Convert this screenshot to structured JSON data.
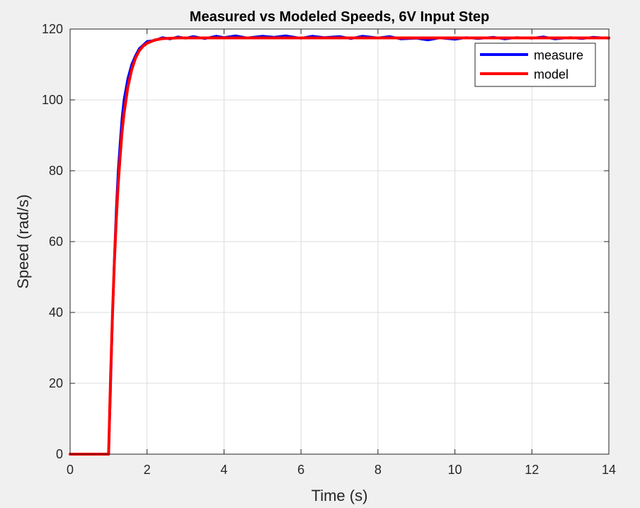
{
  "chart_data": {
    "type": "line",
    "title": "Measured vs Modeled Speeds, 6V Input Step",
    "xlabel": "Time (s)",
    "ylabel": "Speed (rad/s)",
    "xlim": [
      0,
      14
    ],
    "ylim": [
      0,
      120
    ],
    "xticks": [
      0,
      2,
      4,
      6,
      8,
      10,
      12,
      14
    ],
    "yticks": [
      0,
      20,
      40,
      60,
      80,
      100,
      120
    ],
    "grid": true,
    "legend_position": "top-right",
    "series": [
      {
        "name": "measure",
        "color": "#0000ff",
        "x": [
          0,
          0.5,
          0.99,
          1.0,
          1.05,
          1.1,
          1.15,
          1.2,
          1.25,
          1.3,
          1.35,
          1.4,
          1.5,
          1.6,
          1.7,
          1.8,
          1.9,
          2.0,
          2.2,
          2.4,
          2.6,
          2.8,
          3.0,
          3.2,
          3.5,
          3.8,
          4.0,
          4.3,
          4.6,
          5.0,
          5.3,
          5.6,
          6.0,
          6.3,
          6.6,
          7.0,
          7.3,
          7.6,
          8.0,
          8.3,
          8.6,
          9.0,
          9.3,
          9.6,
          10.0,
          10.3,
          10.6,
          11.0,
          11.3,
          11.6,
          12.0,
          12.3,
          12.6,
          13.0,
          13.3,
          13.6,
          14.0
        ],
        "y": [
          0,
          0,
          0,
          0,
          18,
          38,
          55,
          69,
          80,
          88,
          95,
          100,
          106,
          110,
          112.5,
          114.5,
          115.5,
          116.5,
          116.8,
          117.6,
          117.2,
          117.8,
          117.4,
          117.9,
          117.3,
          118.0,
          117.6,
          118.1,
          117.5,
          118.0,
          117.7,
          118.1,
          117.4,
          118.0,
          117.6,
          117.9,
          117.3,
          118.0,
          117.5,
          117.9,
          117.2,
          117.4,
          116.9,
          117.5,
          117.1,
          117.6,
          117.3,
          117.7,
          117.2,
          117.6,
          117.4,
          117.8,
          117.2,
          117.6,
          117.3,
          117.7,
          117.4
        ]
      },
      {
        "name": "model",
        "color": "#ff0000",
        "x": [
          0,
          0.5,
          0.99,
          1.0,
          1.05,
          1.1,
          1.15,
          1.2,
          1.25,
          1.3,
          1.35,
          1.4,
          1.5,
          1.6,
          1.7,
          1.8,
          1.9,
          2.0,
          2.2,
          2.4,
          2.6,
          2.8,
          3.0,
          4.0,
          6.0,
          8.0,
          10.0,
          12.0,
          14.0
        ],
        "y": [
          0,
          0,
          0,
          0,
          21,
          39,
          54,
          66,
          76,
          84,
          91,
          96,
          103.5,
          108.5,
          111.8,
          113.9,
          115.2,
          116.0,
          116.9,
          117.3,
          117.4,
          117.5,
          117.5,
          117.5,
          117.5,
          117.5,
          117.5,
          117.5,
          117.5
        ]
      }
    ]
  }
}
